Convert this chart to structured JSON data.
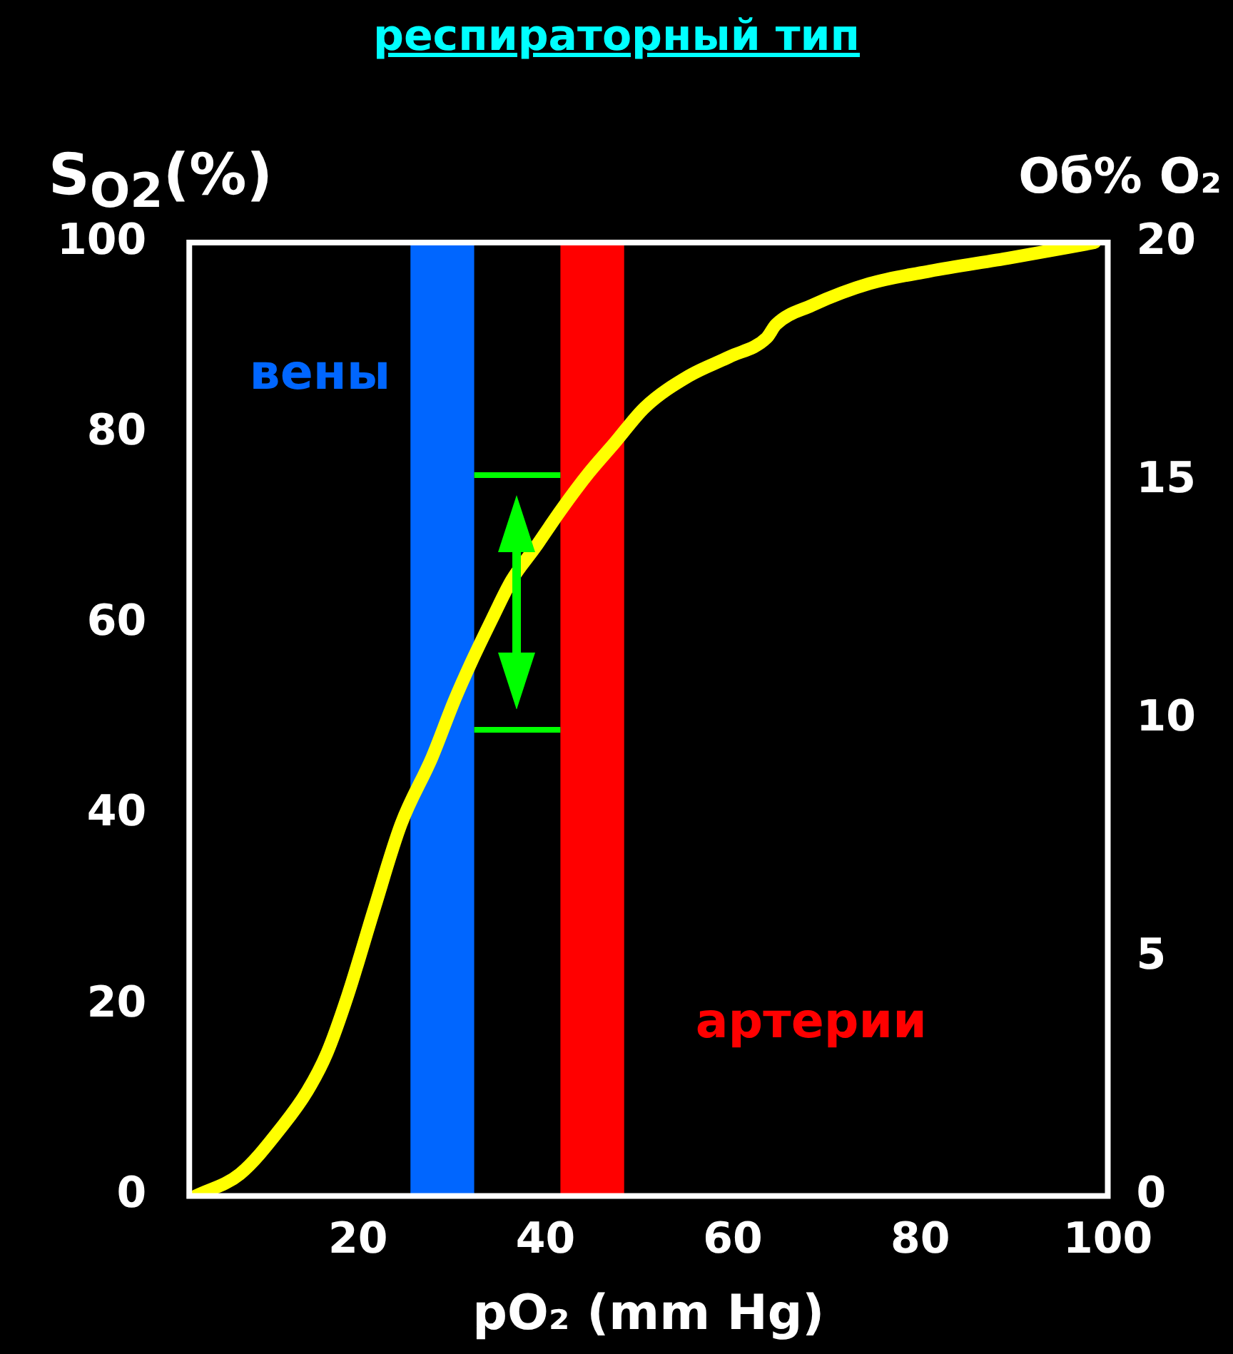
{
  "chart_data": {
    "type": "line",
    "title": "респираторный тип",
    "xlabel": "pO₂ (mm Hg)",
    "ylabel": "S$_{O2}$(%)",
    "y2label": "Об% O₂",
    "xlim": [
      2,
      100
    ],
    "xticks": [
      20,
      40,
      60,
      80,
      100
    ],
    "ylim": [
      0,
      100
    ],
    "yticks": [
      0,
      20,
      40,
      60,
      80,
      100
    ],
    "y2lim": [
      0,
      20
    ],
    "y2ticks": [
      0,
      5,
      10,
      15,
      20
    ],
    "grid": false,
    "legend": false,
    "marker": "none",
    "line_style": "solid",
    "series": [
      {
        "color": "#ffff00",
        "x": [
          2.7,
          7.4,
          12,
          14.6,
          16.7,
          18.9,
          21.7,
          24.6,
          27.9,
          30.3,
          32.1,
          34.3,
          36.4,
          38.9,
          41.7,
          44.6,
          47.4,
          50.6,
          55.3,
          59.6,
          63.6,
          64.6,
          68.4,
          74.6,
          81,
          89.6,
          98.6
        ],
        "values": [
          0,
          2.3,
          7.4,
          11,
          15,
          21,
          30,
          39,
          46,
          52,
          56,
          60.5,
          64.6,
          68,
          72,
          75.8,
          79,
          82.7,
          86,
          88,
          90,
          91.4,
          93.4,
          95.7,
          97,
          98.4,
          100
        ]
      }
    ],
    "bands": [
      {
        "axis": "x",
        "from": 25.6,
        "to": 32.4,
        "label": "вены",
        "color": "#0066ff"
      },
      {
        "axis": "x",
        "from": 41.6,
        "to": 48.4,
        "label": "артерии",
        "color": "#ff0000"
      }
    ],
    "ref_lines": [
      {
        "axis": "y",
        "value": 75.6,
        "color": "#00ff00",
        "line_style": "solid"
      },
      {
        "axis": "y",
        "value": 48.9,
        "color": "#00ff00",
        "line_style": "solid"
      }
    ]
  }
}
